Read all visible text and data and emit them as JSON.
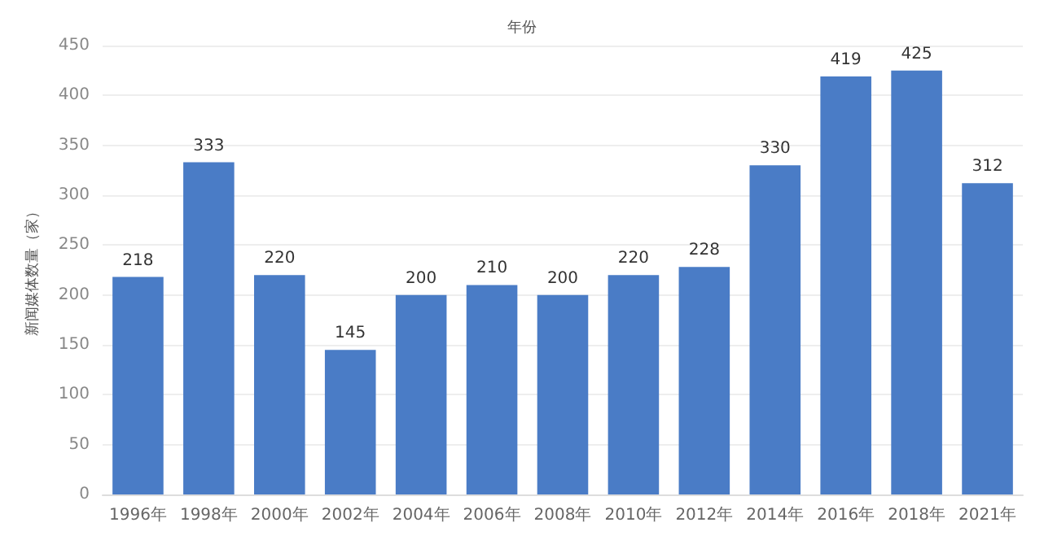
{
  "chart_data": {
    "type": "bar",
    "xlabel": "年份",
    "ylabel": "新闻媒体数量（家）",
    "categories": [
      "1996年",
      "1998年",
      "2000年",
      "2002年",
      "2004年",
      "2006年",
      "2008年",
      "2010年",
      "2012年",
      "2014年",
      "2016年",
      "2018年",
      "2021年"
    ],
    "values": [
      218,
      333,
      220,
      145,
      200,
      210,
      200,
      220,
      228,
      330,
      419,
      425,
      312
    ],
    "color": "#4a7cc6",
    "ylim": [
      0,
      450
    ],
    "yticks": [
      0,
      50,
      100,
      150,
      200,
      250,
      300,
      350,
      400,
      450
    ],
    "grid": "y",
    "data_labels": true
  }
}
